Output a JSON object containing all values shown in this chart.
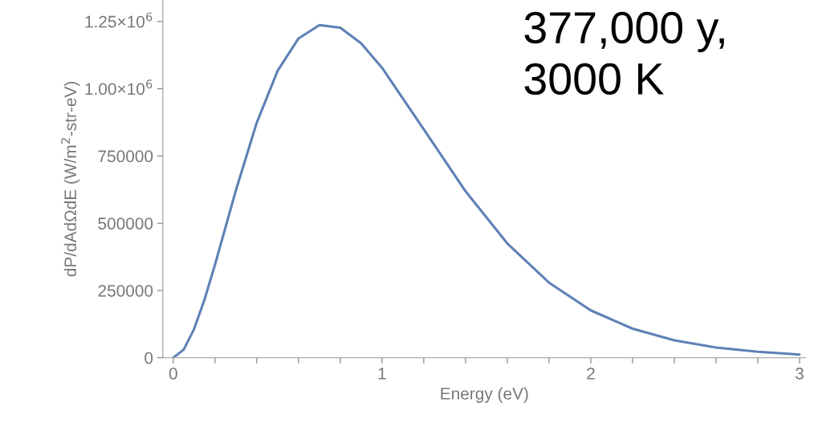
{
  "chart_data": {
    "type": "line",
    "xlabel": "Energy (eV)",
    "ylabel": "dP/dAdΩdE (W/m$^{2}$-str-eV)",
    "annotations": [
      "377,000 y,\n3000 K"
    ],
    "series": [
      {
        "color": "#5e81b5",
        "x": [
          0,
          0.05,
          0.1,
          0.15,
          0.2,
          0.25,
          0.3,
          0.4,
          0.5,
          0.6,
          0.7,
          0.8,
          0.9,
          1.0,
          1.2,
          1.4,
          1.6,
          1.8,
          2.0,
          2.2,
          2.4,
          2.6,
          2.8,
          3.0
        ],
        "values": [
          0,
          30000,
          107000,
          217000,
          346000,
          484000,
          622000,
          874000,
          1067000,
          1187000,
          1237000,
          1227000,
          1169000,
          1078000,
          849000,
          619000,
          425000,
          279000,
          176000,
          108000,
          65000,
          38000,
          22000,
          12000
        ]
      }
    ],
    "xlim": [
      -0.05,
      3.03
    ],
    "ylim": [
      0,
      1330000
    ],
    "xticks": [
      0,
      {
        "value": 0.2,
        "label": null
      },
      {
        "value": 0.4,
        "label": null
      },
      {
        "value": 0.6,
        "label": null
      },
      {
        "value": 0.8,
        "label": null
      },
      1,
      {
        "value": 1.2,
        "label": null
      },
      {
        "value": 1.4,
        "label": null
      },
      {
        "value": 1.6,
        "label": null
      },
      {
        "value": 1.8,
        "label": null
      },
      2,
      {
        "value": 2.2,
        "label": null
      },
      {
        "value": 2.4,
        "label": null
      },
      {
        "value": 2.6,
        "label": null
      },
      {
        "value": 2.8,
        "label": null
      },
      3
    ],
    "yticks": [
      0,
      250000,
      500000,
      750000,
      {
        "value": 1000000,
        "label": "1.00×10$^{6}$"
      },
      {
        "value": 1250000,
        "label": "1.25×10$^{6}$"
      }
    ],
    "grid": false,
    "legend": false,
    "marker": "none",
    "line_style": "solid"
  }
}
